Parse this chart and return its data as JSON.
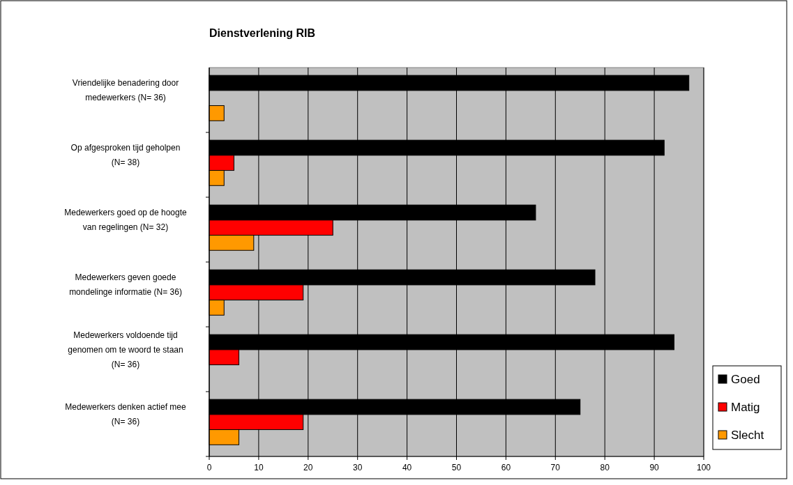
{
  "chart_data": {
    "type": "bar",
    "orientation": "horizontal",
    "title": "Dienstverlening RIB",
    "categories": [
      "Vriendelijke benadering door medewerkers (N= 36)",
      "Op afgesproken tijd geholpen (N= 38)",
      "Medewerkers goed op de hoogte van regelingen (N= 32)",
      "Medewerkers geven goede mondelinge informatie (N= 36)",
      "Medewerkers voldoende tijd genomen om te woord te staan (N= 36)",
      "Medewerkers denken actief mee (N= 36)"
    ],
    "series": [
      {
        "name": "Goed",
        "color": "#000000",
        "values": [
          97,
          92,
          66,
          78,
          94,
          75
        ]
      },
      {
        "name": "Matig",
        "color": "#ff0000",
        "values": [
          null,
          5,
          25,
          19,
          6,
          19
        ]
      },
      {
        "name": "Slecht",
        "color": "#ff9900",
        "values": [
          3,
          3,
          9,
          3,
          null,
          6
        ]
      }
    ],
    "xlim": [
      0,
      100
    ],
    "xticks": [
      0,
      10,
      20,
      30,
      40,
      50,
      60,
      70,
      80,
      90,
      100
    ],
    "grid": "x",
    "legend": "right"
  }
}
